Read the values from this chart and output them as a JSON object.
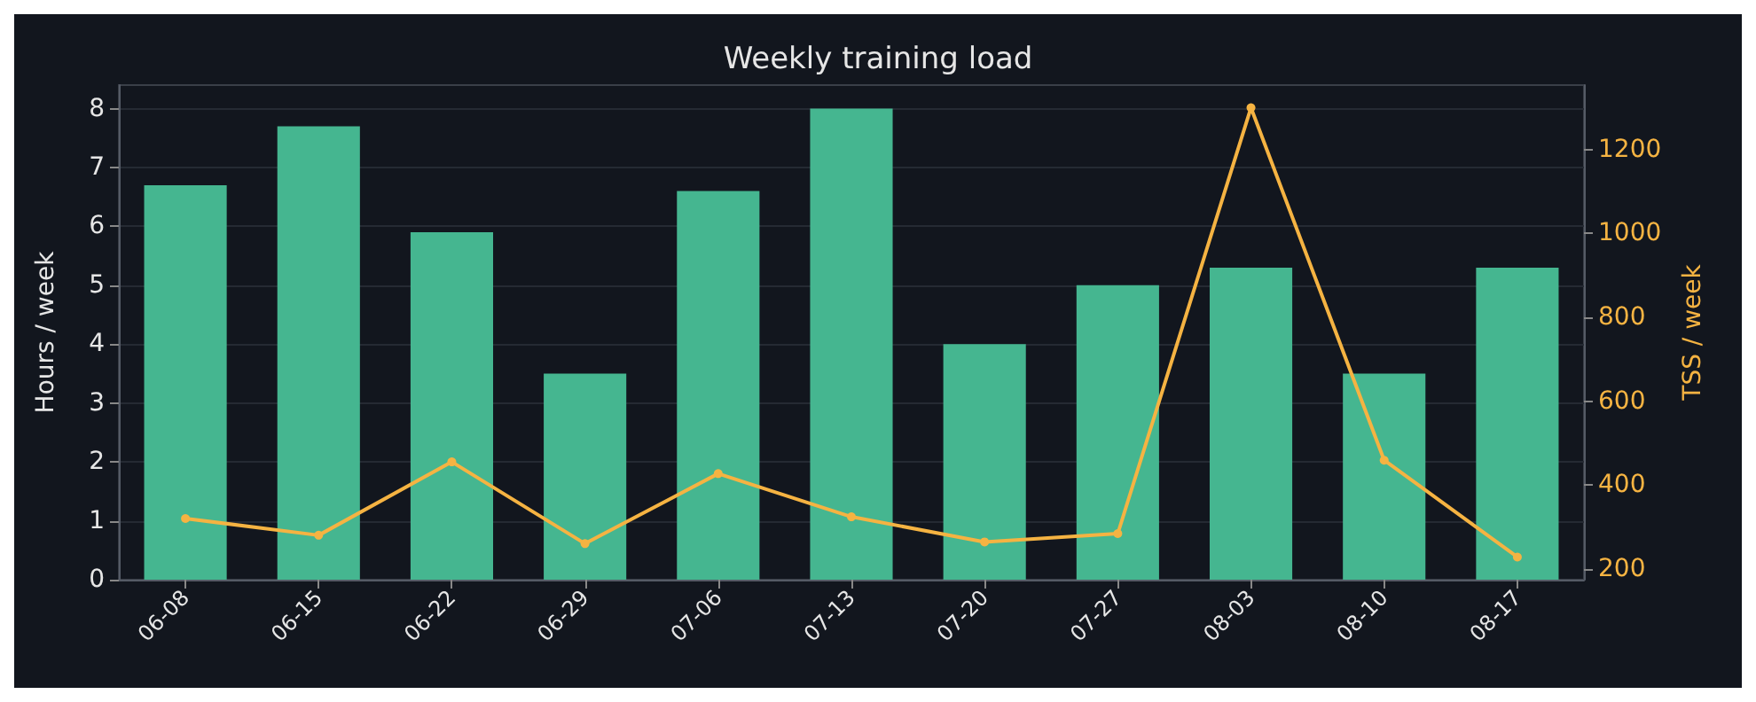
{
  "chart_data": {
    "type": "bar",
    "title": "Weekly training load",
    "ylabel": "Hours / week",
    "y2label": "TSS / week",
    "categories": [
      "06-08",
      "06-15",
      "06-22",
      "06-29",
      "07-06",
      "07-13",
      "07-20",
      "07-27",
      "08-03",
      "08-10",
      "08-17"
    ],
    "series": [
      {
        "color": "#45b690",
        "values": [
          6.7,
          7.7,
          5.9,
          3.5,
          6.6,
          8.0,
          4.0,
          5.0,
          5.3,
          3.5,
          5.3
        ]
      },
      {
        "type": "line",
        "axis": "y2",
        "color": "#f5b342",
        "values": [
          320,
          280,
          455,
          260,
          427,
          324,
          264,
          284,
          1300,
          459,
          228
        ]
      }
    ],
    "ylim": [
      0,
      8.4
    ],
    "yticks": [
      0,
      1,
      2,
      3,
      4,
      5,
      6,
      7,
      8
    ],
    "y2lim": [
      174,
      1354
    ],
    "y2ticks": [
      200,
      400,
      600,
      800,
      1000,
      1200
    ],
    "grid": "y",
    "marker": "circle",
    "line_style": "solid"
  }
}
